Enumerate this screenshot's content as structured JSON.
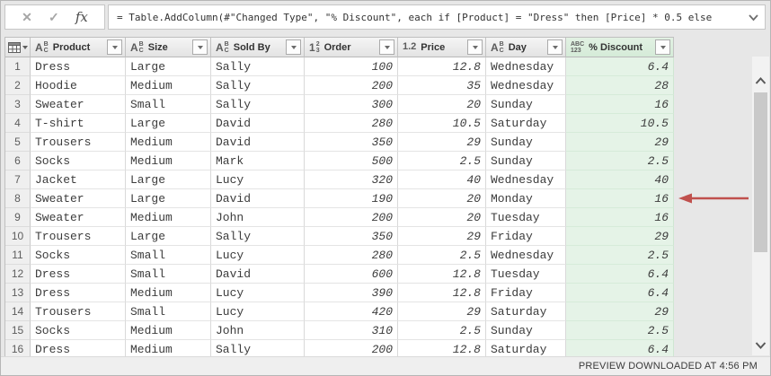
{
  "formula_bar": {
    "formula": "= Table.AddColumn(#\"Changed Type\", \"% Discount\", each if [Product] = \"Dress\" then [Price] * 0.5 else",
    "cancel_label": "✕",
    "commit_label": "✓",
    "fx_label": "fx"
  },
  "type_icons": {
    "text": [
      "A",
      "B",
      "C"
    ],
    "whole": [
      "1",
      "2",
      "3"
    ],
    "decimal": [
      "1.2"
    ],
    "any": [
      "ABC",
      "123"
    ]
  },
  "table": {
    "columns": [
      {
        "name": "Product",
        "type": "text",
        "align": "left",
        "highlight": false
      },
      {
        "name": "Size",
        "type": "text",
        "align": "left",
        "highlight": false
      },
      {
        "name": "Sold By",
        "type": "text",
        "align": "left",
        "highlight": false
      },
      {
        "name": "Order",
        "type": "whole",
        "align": "right",
        "highlight": false
      },
      {
        "name": "Price",
        "type": "decimal",
        "align": "right",
        "highlight": false
      },
      {
        "name": "Day",
        "type": "text",
        "align": "left",
        "highlight": false
      },
      {
        "name": "% Discount",
        "type": "any",
        "align": "right",
        "highlight": true
      }
    ],
    "rows": [
      {
        "num": "1",
        "cells": [
          "Dress",
          "Large",
          "Sally",
          "100",
          "12.8",
          "Wednesday",
          "6.4"
        ]
      },
      {
        "num": "2",
        "cells": [
          "Hoodie",
          "Medium",
          "Sally",
          "200",
          "35",
          "Wednesday",
          "28"
        ]
      },
      {
        "num": "3",
        "cells": [
          "Sweater",
          "Small",
          "Sally",
          "300",
          "20",
          "Sunday",
          "16"
        ]
      },
      {
        "num": "4",
        "cells": [
          "T-shirt",
          "Large",
          "David",
          "280",
          "10.5",
          "Saturday",
          "10.5"
        ]
      },
      {
        "num": "5",
        "cells": [
          "Trousers",
          "Medium",
          "David",
          "350",
          "29",
          "Sunday",
          "29"
        ]
      },
      {
        "num": "6",
        "cells": [
          "Socks",
          "Medium",
          "Mark",
          "500",
          "2.5",
          "Sunday",
          "2.5"
        ]
      },
      {
        "num": "7",
        "cells": [
          "Jacket",
          "Large",
          "Lucy",
          "320",
          "40",
          "Wednesday",
          "40"
        ]
      },
      {
        "num": "8",
        "cells": [
          "Sweater",
          "Large",
          "David",
          "190",
          "20",
          "Monday",
          "16"
        ]
      },
      {
        "num": "9",
        "cells": [
          "Sweater",
          "Medium",
          "John",
          "200",
          "20",
          "Tuesday",
          "16"
        ]
      },
      {
        "num": "10",
        "cells": [
          "Trousers",
          "Large",
          "Sally",
          "350",
          "29",
          "Friday",
          "29"
        ]
      },
      {
        "num": "11",
        "cells": [
          "Socks",
          "Small",
          "Lucy",
          "280",
          "2.5",
          "Wednesday",
          "2.5"
        ]
      },
      {
        "num": "12",
        "cells": [
          "Dress",
          "Small",
          "David",
          "600",
          "12.8",
          "Tuesday",
          "6.4"
        ]
      },
      {
        "num": "13",
        "cells": [
          "Dress",
          "Medium",
          "Lucy",
          "390",
          "12.8",
          "Friday",
          "6.4"
        ]
      },
      {
        "num": "14",
        "cells": [
          "Trousers",
          "Small",
          "Lucy",
          "420",
          "29",
          "Saturday",
          "29"
        ]
      },
      {
        "num": "15",
        "cells": [
          "Socks",
          "Medium",
          "John",
          "310",
          "2.5",
          "Sunday",
          "2.5"
        ]
      },
      {
        "num": "16",
        "cells": [
          "Dress",
          "Medium",
          "Sally",
          "200",
          "12.8",
          "Saturday",
          "6.4"
        ]
      }
    ],
    "arrow_row_num": "8"
  },
  "status_bar": {
    "text": "PREVIEW DOWNLOADED AT 4:56 PM"
  },
  "colors": {
    "highlight_header": "#dceedd",
    "highlight_cell": "#e5f3e7",
    "arrow": "#c0504d",
    "accent_gray": "#e7e7e7"
  }
}
